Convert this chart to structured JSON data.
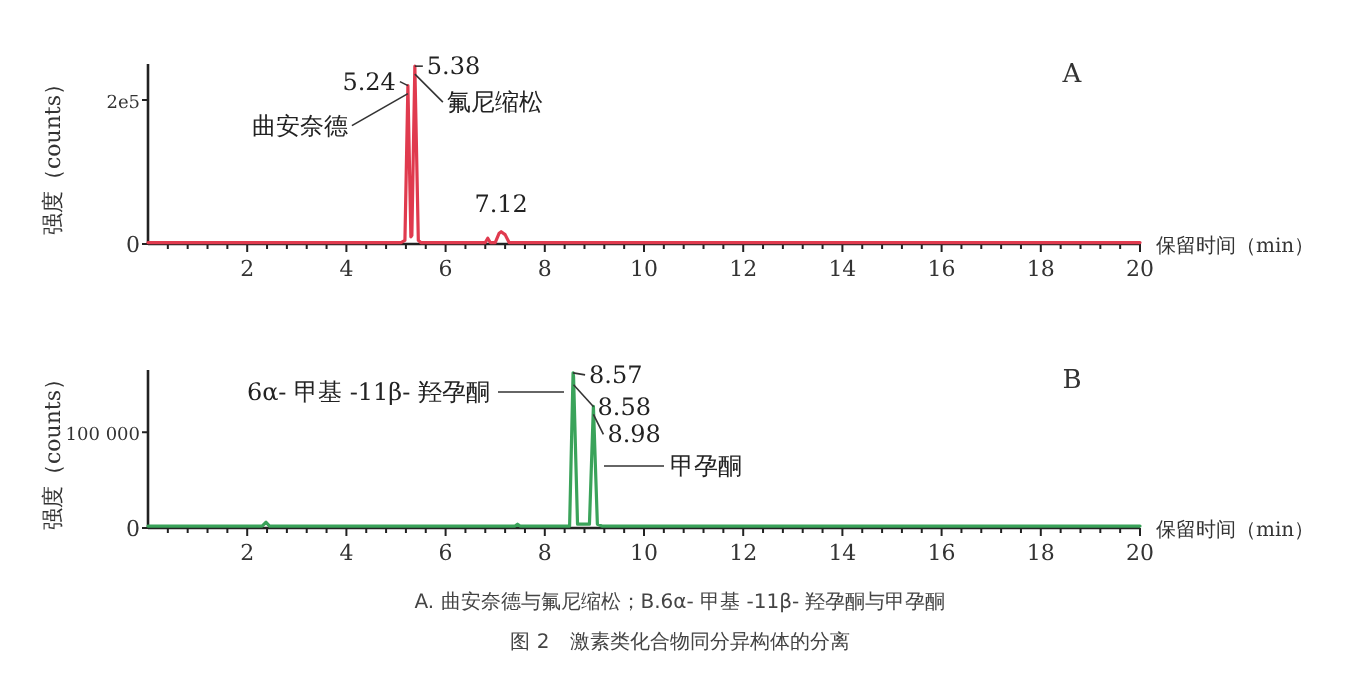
{
  "chart_data": [
    {
      "type": "line",
      "title": "A",
      "xlabel": "保留时间（min）",
      "ylabel": "强度（counts）",
      "xlim": [
        0,
        20
      ],
      "ylim": [
        0,
        250000
      ],
      "xticks": [
        {
          "value": 0.4,
          "label": null
        },
        {
          "value": 0.8,
          "label": null
        },
        {
          "value": 1.2,
          "label": null
        },
        {
          "value": 1.6,
          "label": null
        },
        2,
        {
          "value": 2.4,
          "label": null
        },
        {
          "value": 2.8,
          "label": null
        },
        {
          "value": 3.2,
          "label": null
        },
        {
          "value": 3.6,
          "label": null
        },
        4,
        {
          "value": 4.4,
          "label": null
        },
        {
          "value": 4.8,
          "label": null
        },
        {
          "value": 5.2,
          "label": null
        },
        {
          "value": 5.6,
          "label": null
        },
        6,
        {
          "value": 6.4,
          "label": null
        },
        {
          "value": 6.8,
          "label": null
        },
        {
          "value": 7.2,
          "label": null
        },
        {
          "value": 7.6,
          "label": null
        },
        8,
        {
          "value": 8.4,
          "label": null
        },
        {
          "value": 8.8,
          "label": null
        },
        {
          "value": 9.2,
          "label": null
        },
        {
          "value": 9.6,
          "label": null
        },
        10,
        {
          "value": 10.4,
          "label": null
        },
        {
          "value": 10.8,
          "label": null
        },
        {
          "value": 11.2,
          "label": null
        },
        {
          "value": 11.6,
          "label": null
        },
        12,
        {
          "value": 12.4,
          "label": null
        },
        {
          "value": 12.8,
          "label": null
        },
        {
          "value": 13.2,
          "label": null
        },
        {
          "value": 13.6,
          "label": null
        },
        14,
        {
          "value": 14.4,
          "label": null
        },
        {
          "value": 14.8,
          "label": null
        },
        {
          "value": 15.2,
          "label": null
        },
        {
          "value": 15.6,
          "label": null
        },
        16,
        {
          "value": 16.4,
          "label": null
        },
        {
          "value": 16.8,
          "label": null
        },
        {
          "value": 17.2,
          "label": null
        },
        {
          "value": 17.6,
          "label": null
        },
        18,
        {
          "value": 18.4,
          "label": null
        },
        {
          "value": 18.8,
          "label": null
        },
        {
          "value": 19.2,
          "label": null
        },
        {
          "value": 19.6,
          "label": null
        },
        20
      ],
      "yticks": [
        0,
        {
          "value": 200000,
          "label": "2e5"
        }
      ],
      "series": [
        {
          "color": "#e03a4e",
          "x": [
            0,
            5.1,
            5.18,
            5.24,
            5.3,
            5.32,
            5.38,
            5.45,
            5.5,
            6.8,
            6.85,
            6.9,
            7.0,
            7.08,
            7.12,
            7.2,
            7.28,
            20
          ],
          "values": [
            2000,
            2000,
            5000,
            220000,
            10000,
            12000,
            247000,
            5000,
            2000,
            2000,
            8000,
            2000,
            2000,
            15000,
            17000,
            13000,
            2000,
            2000
          ]
        }
      ],
      "annotations": [
        {
          "text": "5.24",
          "x": 5.24,
          "y": 220000
        },
        {
          "text": "5.38",
          "x": 5.38,
          "y": 247000
        },
        {
          "text": "曲安奈德",
          "x": 5.24,
          "y": 220000
        },
        {
          "text": "氟尼缩松",
          "x": 5.38,
          "y": 247000
        },
        {
          "text": "7.12",
          "x": 7.12,
          "y": 17000
        }
      ]
    },
    {
      "type": "line",
      "title": "B",
      "xlabel": "保留时间（min）",
      "ylabel": "强度（counts）",
      "xlim": [
        0,
        20
      ],
      "ylim": [
        0,
        165000
      ],
      "xticks": [
        {
          "value": 0.4,
          "label": null
        },
        {
          "value": 0.8,
          "label": null
        },
        {
          "value": 1.2,
          "label": null
        },
        {
          "value": 1.6,
          "label": null
        },
        2,
        {
          "value": 2.4,
          "label": null
        },
        {
          "value": 2.8,
          "label": null
        },
        {
          "value": 3.2,
          "label": null
        },
        {
          "value": 3.6,
          "label": null
        },
        4,
        {
          "value": 4.4,
          "label": null
        },
        {
          "value": 4.8,
          "label": null
        },
        {
          "value": 5.2,
          "label": null
        },
        {
          "value": 5.6,
          "label": null
        },
        6,
        {
          "value": 6.4,
          "label": null
        },
        {
          "value": 6.8,
          "label": null
        },
        {
          "value": 7.2,
          "label": null
        },
        {
          "value": 7.6,
          "label": null
        },
        8,
        {
          "value": 8.4,
          "label": null
        },
        {
          "value": 8.8,
          "label": null
        },
        {
          "value": 9.2,
          "label": null
        },
        {
          "value": 9.6,
          "label": null
        },
        10,
        {
          "value": 10.4,
          "label": null
        },
        {
          "value": 10.8,
          "label": null
        },
        {
          "value": 11.2,
          "label": null
        },
        {
          "value": 11.6,
          "label": null
        },
        12,
        {
          "value": 12.4,
          "label": null
        },
        {
          "value": 12.8,
          "label": null
        },
        {
          "value": 13.2,
          "label": null
        },
        {
          "value": 13.6,
          "label": null
        },
        14,
        {
          "value": 14.4,
          "label": null
        },
        {
          "value": 14.8,
          "label": null
        },
        {
          "value": 15.2,
          "label": null
        },
        {
          "value": 15.6,
          "label": null
        },
        16,
        {
          "value": 16.4,
          "label": null
        },
        {
          "value": 16.8,
          "label": null
        },
        {
          "value": 17.2,
          "label": null
        },
        {
          "value": 17.6,
          "label": null
        },
        18,
        {
          "value": 18.4,
          "label": null
        },
        {
          "value": 18.8,
          "label": null
        },
        {
          "value": 19.2,
          "label": null
        },
        {
          "value": 19.6,
          "label": null
        },
        20
      ],
      "yticks": [
        0,
        {
          "value": 100000,
          "label": "100 000"
        }
      ],
      "series": [
        {
          "color": "#3aa35a",
          "x": [
            0,
            2.3,
            2.38,
            2.45,
            7.4,
            7.45,
            7.5,
            8.5,
            8.57,
            8.58,
            8.66,
            8.9,
            8.98,
            9.06,
            9.15,
            20
          ],
          "values": [
            2000,
            2000,
            6000,
            2000,
            2000,
            4000,
            2000,
            2000,
            162000,
            158000,
            4000,
            4000,
            127000,
            4000,
            2000,
            2000
          ]
        }
      ],
      "annotations": [
        {
          "text": "8.57",
          "x": 8.57,
          "y": 162000
        },
        {
          "text": "8.58",
          "x": 8.58,
          "y": 158000
        },
        {
          "text": "8.98",
          "x": 8.98,
          "y": 127000
        },
        "6α- 甲基 -11β- 羟孕酮",
        "甲孕酮",
        "A. 曲安奈德与氟尼缩松；B.6α- 甲基 -11β- 羟孕酮与甲孕酮",
        "图 2　激素类化合物同分异构体的分离"
      ]
    }
  ]
}
